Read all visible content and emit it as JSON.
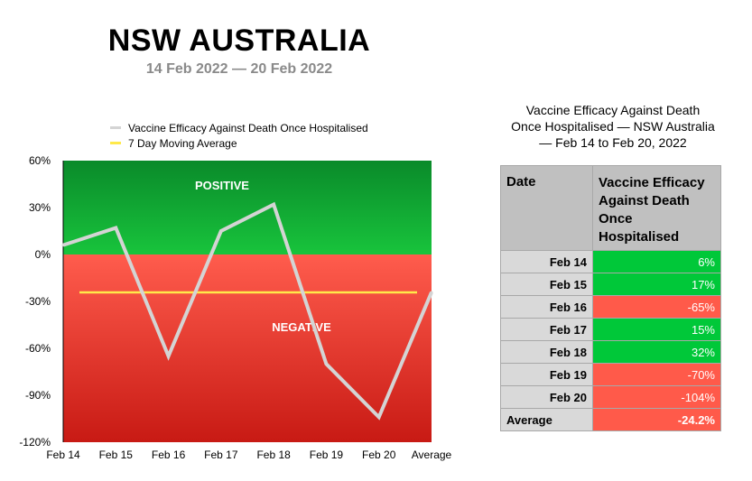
{
  "header": {
    "title": "NSW AUSTRALIA",
    "subtitle": "14 Feb 2022 — 20 Feb 2022"
  },
  "legend": [
    {
      "label": "Vaccine Efficacy Against Death Once Hospitalised",
      "color": "#d4d4d4"
    },
    {
      "label": "7 Day Moving Average",
      "color": "#ffe94a"
    }
  ],
  "chart_data": {
    "type": "line",
    "categories": [
      "Feb 14",
      "Feb 15",
      "Feb 16",
      "Feb 17",
      "Feb 18",
      "Feb 19",
      "Feb 20",
      "Average"
    ],
    "series": [
      {
        "name": "Vaccine Efficacy Against Death Once Hospitalised",
        "values": [
          6,
          17,
          -65,
          15,
          32,
          -70,
          -104,
          -24.2
        ],
        "color": "#d4d4d4"
      },
      {
        "name": "7 Day Moving Average",
        "values": [
          -24.2,
          -24.2,
          -24.2,
          -24.2,
          -24.2,
          -24.2,
          -24.2,
          -24.2
        ],
        "color": "#ffe94a"
      }
    ],
    "yticks": [
      "60%",
      "30%",
      "0%",
      "-30%",
      "-60%",
      "-90%",
      "-120%"
    ],
    "ylim": [
      -120,
      60
    ],
    "regions": {
      "positive": "POSITIVE",
      "negative": "NEGATIVE"
    },
    "colors": {
      "positive_top": "#0a8a2a",
      "positive_bottom": "#18c43c",
      "negative_top": "#ff5c4d",
      "negative_bottom": "#c81a14"
    }
  },
  "table": {
    "title_lines": [
      "Vaccine Efficacy Against Death",
      "Once Hospitalised — NSW Australia",
      "— Feb 14 to Feb 20, 2022"
    ],
    "headers": {
      "date": "Date",
      "value_lines": [
        "Vaccine Efficacy",
        "Against Death",
        "Once",
        "Hospitalised"
      ]
    },
    "rows": [
      {
        "date": "Feb 14",
        "value": "6%",
        "status": "pos"
      },
      {
        "date": "Feb 15",
        "value": "17%",
        "status": "pos"
      },
      {
        "date": "Feb 16",
        "value": "-65%",
        "status": "neg"
      },
      {
        "date": "Feb 17",
        "value": "15%",
        "status": "pos"
      },
      {
        "date": "Feb 18",
        "value": "32%",
        "status": "pos"
      },
      {
        "date": "Feb 19",
        "value": "-70%",
        "status": "neg"
      },
      {
        "date": "Feb 20",
        "value": "-104%",
        "status": "neg"
      }
    ],
    "average": {
      "label": "Average",
      "value": "-24.2%",
      "status": "neg"
    }
  }
}
